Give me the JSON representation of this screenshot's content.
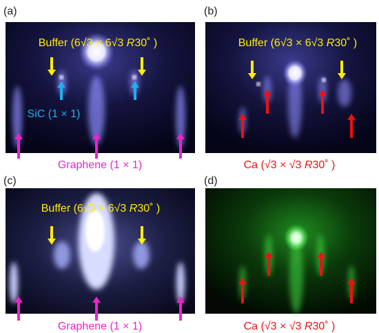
{
  "panels": [
    {
      "label": "(a)",
      "buffer": {
        "text": "Buffer (6√3 × 6√3 ",
        "italic": "R",
        "suffix": "30˚ )"
      },
      "substrate": "SiC (1 × 1)",
      "caption": {
        "text": "Graphene (1 × 1)"
      }
    },
    {
      "label": "(b)",
      "buffer": {
        "text": "Buffer (6√3 × 6√3 ",
        "italic": "R",
        "suffix": "30˚ )"
      },
      "caption": {
        "text": "Ca (√3 × √3 ",
        "italic": "R",
        "suffix": "30˚ )"
      }
    },
    {
      "label": "(c)",
      "buffer": {
        "text": "Buffer (6√3 × 6√3 ",
        "italic": "R",
        "suffix": "30˚ )"
      },
      "caption": {
        "text": "Graphene (1 × 1)"
      }
    },
    {
      "label": "(d)",
      "caption": {
        "text": "Ca (√3 × √3 ",
        "italic": "R",
        "suffix": "30˚ )"
      }
    }
  ]
}
